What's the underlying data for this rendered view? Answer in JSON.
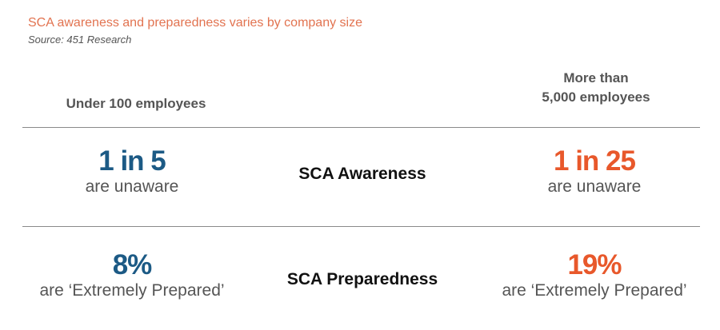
{
  "title": "SCA awareness and preparedness varies by company size",
  "source": "Source: 451 Research",
  "colors": {
    "small_company": "#1C5A85",
    "large_company": "#E8582B",
    "title": "#E27350"
  },
  "headers": {
    "left": "Under 100 employees",
    "right_line1": "More than",
    "right_line2": "5,000 employees"
  },
  "rows": [
    {
      "label": "SCA Awareness",
      "left_value": "1 in 5",
      "left_sub": "are unaware",
      "right_value": "1 in 25",
      "right_sub": "are unaware"
    },
    {
      "label": "SCA Preparedness",
      "left_value": "8%",
      "left_sub": "are ‘Extremely Prepared’",
      "right_value": "19%",
      "right_sub": "are ‘Extremely Prepared’"
    }
  ]
}
